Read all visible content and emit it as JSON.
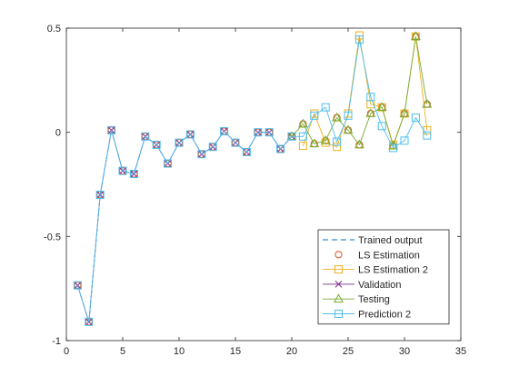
{
  "chart_data": {
    "type": "line",
    "xlim": [
      0,
      35
    ],
    "ylim": [
      -1,
      0.5
    ],
    "x_ticks": [
      "0",
      "5",
      "10",
      "15",
      "20",
      "25",
      "30",
      "35"
    ],
    "y_ticks": [
      "-1",
      "-0.5",
      "0",
      "0.5"
    ],
    "grid": false,
    "legend_location": "bottom-right",
    "series": [
      {
        "name": "Trained output",
        "color": "#0072BD",
        "line": "dashed",
        "marker": "none",
        "x": [
          1,
          2,
          3,
          4,
          5,
          6,
          7,
          8,
          9,
          10,
          11,
          12,
          13,
          14,
          15,
          16,
          17,
          18,
          19,
          20
        ],
        "y": [
          -0.735,
          -0.91,
          -0.3,
          0.01,
          -0.185,
          -0.2,
          -0.02,
          -0.06,
          -0.15,
          -0.05,
          -0.01,
          -0.105,
          -0.07,
          0.005,
          -0.05,
          -0.095,
          0.0,
          0.0,
          -0.08,
          -0.02
        ]
      },
      {
        "name": "LS Estimation",
        "color": "#D95319",
        "line": "none",
        "marker": "circle",
        "x": [
          1,
          2,
          3,
          4,
          5,
          6,
          7,
          8,
          9,
          10,
          11,
          12,
          13,
          14,
          15,
          16,
          17,
          18,
          19,
          20,
          21,
          22,
          23,
          24,
          25,
          26,
          27,
          28,
          29,
          30,
          31,
          32
        ],
        "y": [
          -0.735,
          -0.91,
          -0.3,
          0.01,
          -0.185,
          -0.2,
          -0.02,
          -0.06,
          -0.15,
          -0.05,
          -0.01,
          -0.105,
          -0.07,
          0.005,
          -0.05,
          -0.095,
          0.0,
          0.0,
          -0.08,
          -0.02,
          0.04,
          -0.055,
          -0.04,
          0.07,
          0.01,
          -0.06,
          0.09,
          0.12,
          -0.065,
          0.09,
          0.46,
          0.135
        ]
      },
      {
        "name": "LS Estimation 2",
        "color": "#EDB120",
        "line": "solid",
        "marker": "square",
        "x": [
          21,
          22,
          23,
          24,
          25,
          26,
          27,
          28,
          29,
          30,
          31,
          32
        ],
        "y": [
          -0.065,
          0.09,
          -0.05,
          -0.07,
          0.09,
          0.465,
          0.135,
          0.12,
          -0.06,
          0.09,
          0.46,
          0.01
        ]
      },
      {
        "name": "Validation",
        "color": "#7E2F8E",
        "line": "solid",
        "marker": "x",
        "x": [
          1,
          2,
          3,
          4,
          5,
          6,
          7,
          8,
          9,
          10,
          11,
          12,
          13,
          14,
          15,
          16,
          17,
          18,
          19,
          20
        ],
        "y": [
          -0.735,
          -0.91,
          -0.3,
          0.01,
          -0.185,
          -0.2,
          -0.02,
          -0.06,
          -0.15,
          -0.05,
          -0.01,
          -0.105,
          -0.07,
          0.005,
          -0.05,
          -0.095,
          0.0,
          0.0,
          -0.08,
          -0.02
        ]
      },
      {
        "name": "Testing",
        "color": "#77AC30",
        "line": "solid",
        "marker": "triangle",
        "x": [
          20,
          21,
          22,
          23,
          24,
          25,
          26,
          27,
          28,
          29,
          30,
          31,
          32
        ],
        "y": [
          -0.02,
          0.04,
          -0.055,
          -0.04,
          0.07,
          0.01,
          -0.06,
          0.09,
          0.12,
          -0.065,
          0.09,
          0.46,
          0.135
        ]
      },
      {
        "name": "Prediction 2",
        "color": "#4DBEEE",
        "line": "solid",
        "marker": "square",
        "x": [
          1,
          2,
          3,
          4,
          5,
          6,
          7,
          8,
          9,
          10,
          11,
          12,
          13,
          14,
          15,
          16,
          17,
          18,
          19,
          20,
          21,
          22,
          23,
          24,
          25,
          26,
          27,
          28,
          29,
          30,
          31,
          32
        ],
        "y": [
          -0.735,
          -0.91,
          -0.3,
          0.01,
          -0.185,
          -0.2,
          -0.02,
          -0.06,
          -0.15,
          -0.05,
          -0.01,
          -0.105,
          -0.07,
          0.005,
          -0.05,
          -0.095,
          0.0,
          0.0,
          -0.08,
          -0.02,
          -0.02,
          0.08,
          0.12,
          -0.045,
          0.08,
          0.445,
          0.17,
          0.03,
          -0.075,
          -0.04,
          0.07,
          -0.015
        ]
      }
    ]
  }
}
